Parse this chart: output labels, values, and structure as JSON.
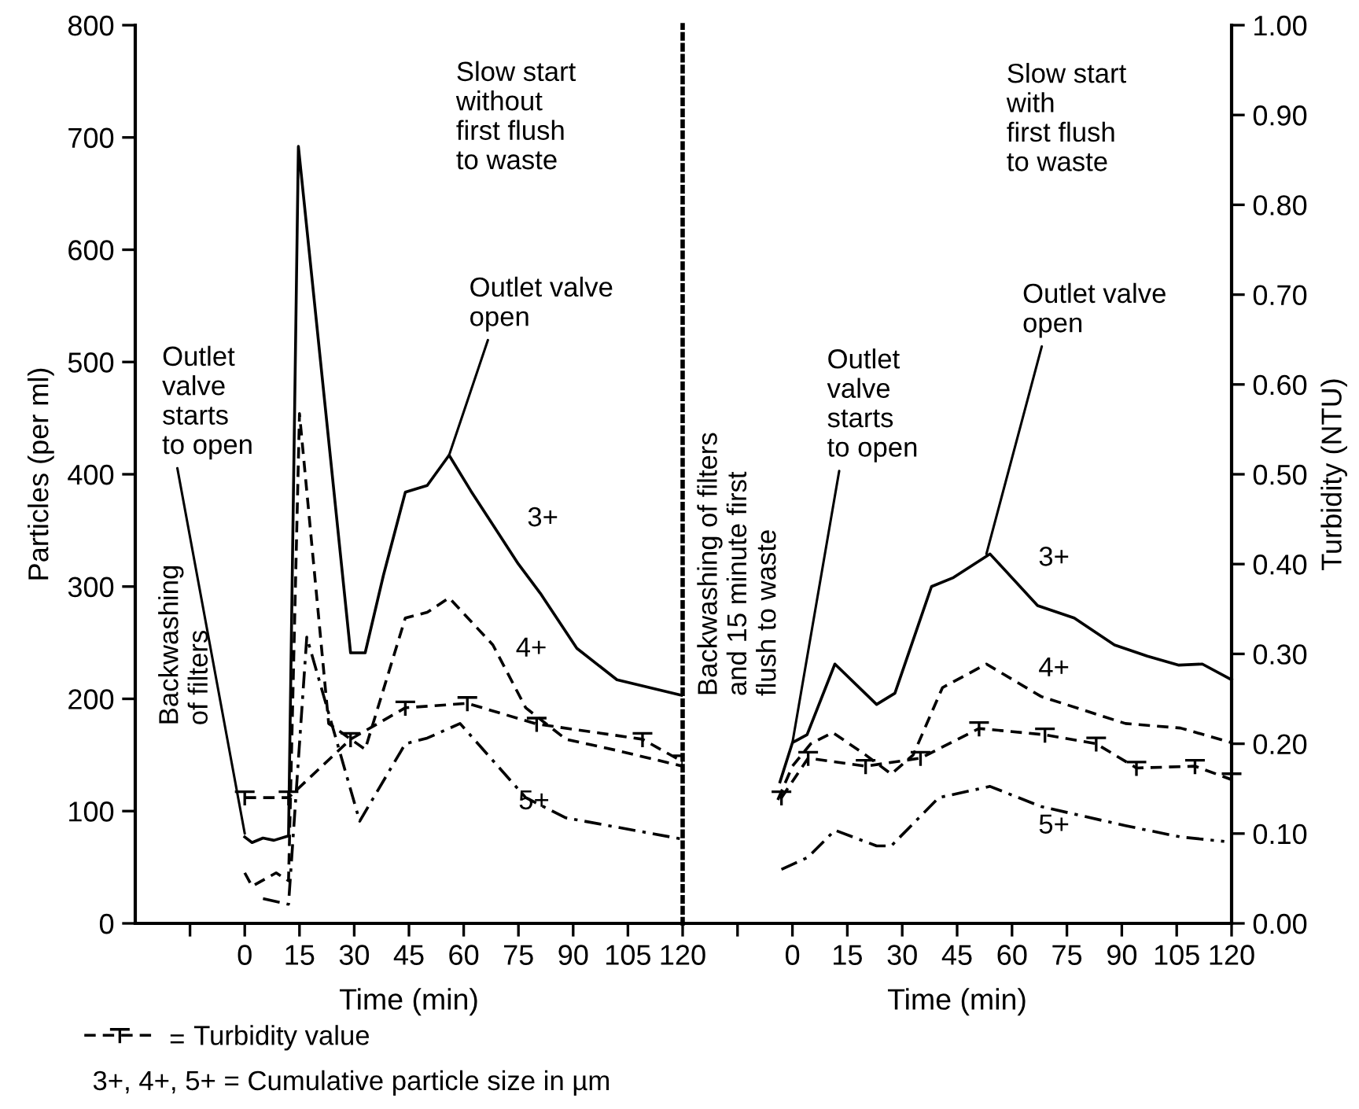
{
  "chart_data": [
    {
      "type": "line",
      "xlabel": "Time (min)",
      "ylabel": "Particles (per ml)",
      "xlim": [
        -30,
        120
      ],
      "xticks": [
        {
          "value": -15,
          "label": null
        },
        0,
        15,
        30,
        45,
        60,
        75,
        90,
        105,
        120
      ],
      "ylim": [
        0,
        800
      ],
      "yticks": [
        0,
        100,
        200,
        300,
        400,
        500,
        600,
        700,
        800
      ],
      "y2lim": [
        0,
        1
      ],
      "legend": "bottom",
      "grid": false,
      "series": [
        {
          "name": "3+",
          "color": "#000000",
          "line_style": "solid",
          "x": [
            0,
            2,
            5,
            8,
            12,
            14.7,
            29,
            33,
            38,
            44,
            50,
            56,
            62,
            68,
            75,
            81,
            91,
            102,
            120
          ],
          "values": [
            77,
            72,
            76,
            74,
            78,
            692,
            241,
            241,
            310,
            384,
            390,
            417,
            385,
            355,
            320,
            294,
            245,
            217,
            203
          ]
        },
        {
          "name": "4+",
          "color": "#000000",
          "line_style": "dashed",
          "x": [
            0,
            2,
            8.6,
            12,
            15,
            23,
            33,
            44,
            50,
            56,
            68,
            77,
            88,
            102,
            120
          ],
          "values": [
            45,
            33,
            45,
            38,
            454,
            178,
            155,
            272,
            277,
            290,
            248,
            192,
            164,
            154,
            140
          ]
        },
        {
          "name": "5+",
          "color": "#000000",
          "line_style": "dashdot",
          "x": [
            5,
            12,
            17,
            31.5,
            44,
            50,
            59,
            77,
            88,
            120
          ],
          "values": [
            22,
            17,
            255,
            91,
            160,
            165,
            178,
            112,
            94,
            75
          ]
        },
        {
          "name": "Turbidity value",
          "color": "#000000",
          "line_style": "dashed",
          "marker": "cross",
          "axis": "y2",
          "x": [
            0,
            12,
            29,
            44,
            61,
            80,
            109,
            120
          ],
          "values": [
            0.14,
            0.14,
            0.205,
            0.24,
            0.245,
            0.222,
            0.205,
            0.18
          ]
        }
      ],
      "annotations": [
        "Slow start\nwithout\nfirst flush\nto waste",
        {
          "text": "Outlet valve\nopen",
          "x": 56,
          "y": 417
        },
        {
          "text": "Outlet\nvalve\nstarts\nto open",
          "x": 0,
          "y": 80
        },
        "Backwashing\nof filters",
        "3+, 4+, 5+ = Cumulative particle size in µm",
        "="
      ]
    },
    {
      "type": "line",
      "xlabel": "Time (min)",
      "y2label": "Turbidity (NTU)",
      "xlim": [
        -30,
        120
      ],
      "xticks": [
        {
          "value": -15,
          "label": null
        },
        0,
        15,
        30,
        45,
        60,
        75,
        90,
        105,
        120
      ],
      "ylim": [
        0,
        800
      ],
      "y2lim": [
        0,
        1
      ],
      "y2ticks": [
        {
          "value": 0,
          "label": "0.00"
        },
        {
          "value": 0.1,
          "label": "0.10"
        },
        {
          "value": 0.2,
          "label": "0.20"
        },
        {
          "value": 0.3,
          "label": "0.30"
        },
        {
          "value": 0.4,
          "label": "0.40"
        },
        {
          "value": 0.5,
          "label": "0.50"
        },
        {
          "value": 0.6,
          "label": "0.60"
        },
        {
          "value": 0.7,
          "label": "0.70"
        },
        {
          "value": 0.8,
          "label": "0.80"
        },
        {
          "value": 0.9,
          "label": "0.90"
        },
        {
          "value": 1,
          "label": "1.00"
        }
      ],
      "grid": false,
      "series": [
        {
          "name": "3+",
          "color": "#000000",
          "line_style": "solid",
          "x": [
            -3.4,
            0,
            4,
            11.6,
            23,
            28,
            38,
            44,
            54,
            67,
            77,
            88,
            97,
            105.6,
            112,
            120
          ],
          "values": [
            126,
            161,
            168,
            231,
            195,
            205,
            300,
            308,
            329,
            283,
            272,
            248,
            238,
            230,
            231,
            217
          ]
        },
        {
          "name": "4+",
          "color": "#000000",
          "line_style": "dashed",
          "x": [
            -4,
            0,
            5,
            11,
            20,
            27,
            33,
            41,
            53,
            68,
            91,
            106,
            120
          ],
          "values": [
            110,
            140,
            160,
            170,
            150,
            133,
            150,
            210,
            231,
            202,
            178,
            174,
            161
          ]
        },
        {
          "name": "5+",
          "color": "#000000",
          "line_style": "dashdot",
          "x": [
            -3,
            4.3,
            11.6,
            23,
            27,
            40,
            54,
            68,
            91,
            106,
            118
          ],
          "values": [
            48,
            59,
            83,
            69,
            69,
            112,
            122,
            104,
            87,
            77,
            73
          ]
        },
        {
          "color": "#000000",
          "line_style": "dashed",
          "marker": "cross",
          "axis": "y2",
          "x": [
            -3,
            4.3,
            20,
            35,
            51,
            69,
            83,
            94,
            110,
            120
          ],
          "values": [
            0.14,
            0.184,
            0.175,
            0.184,
            0.217,
            0.21,
            0.2,
            0.173,
            0.175,
            0.16
          ]
        }
      ],
      "annotations": [
        "Slow start\nwith\nfirst flush\nto waste",
        {
          "text": "Outlet valve\nopen",
          "x": 53,
          "y": 329
        },
        {
          "text": "Outlet\nvalve\nstarts\nto open",
          "x": 0,
          "y": 161
        },
        "Backwashing of filters\nand 15 minute first\nflush to waste"
      ]
    }
  ]
}
